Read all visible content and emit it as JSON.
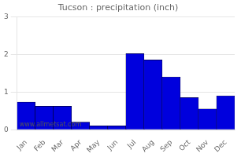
{
  "chart_data": {
    "type": "bar",
    "title": "Tucson : precipitation (inch)",
    "categories": [
      "Jan",
      "Feb",
      "Mar",
      "Apr",
      "May",
      "Jun",
      "Jul",
      "Aug",
      "Sep",
      "Oct",
      "Nov",
      "Dec"
    ],
    "values": [
      0.73,
      0.62,
      0.62,
      0.2,
      0.1,
      0.1,
      2.02,
      1.85,
      1.4,
      0.85,
      0.55,
      0.9
    ],
    "color": "#0000dd",
    "ylim": [
      0,
      3
    ],
    "yticks": [
      0,
      1,
      2,
      3
    ],
    "grid": true,
    "annotations": [
      "www.allmetsat.com"
    ]
  }
}
